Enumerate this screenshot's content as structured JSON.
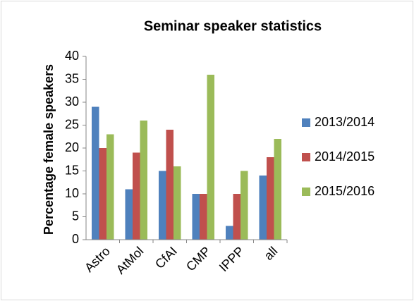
{
  "chart_data": {
    "type": "bar",
    "title": "Seminar speaker statistics",
    "y_label": "Percentage female speakers",
    "categories": [
      "Astro",
      "AtMol",
      "CfAI",
      "CMP",
      "IPPP",
      "all"
    ],
    "series": [
      {
        "name": "2013/2014",
        "color": "#4f81bd",
        "values": [
          29,
          11,
          15,
          10,
          3,
          14
        ]
      },
      {
        "name": "2014/2015",
        "color": "#c0504d",
        "values": [
          20,
          19,
          24,
          10,
          10,
          18
        ]
      },
      {
        "name": "2015/2016",
        "color": "#9bbb59",
        "values": [
          23,
          26,
          16,
          36,
          15,
          22
        ]
      }
    ],
    "ylim": [
      0,
      40
    ],
    "yticks": [
      0,
      5,
      10,
      15,
      20,
      25,
      30,
      35,
      40
    ],
    "grid": false,
    "legend": "right"
  }
}
